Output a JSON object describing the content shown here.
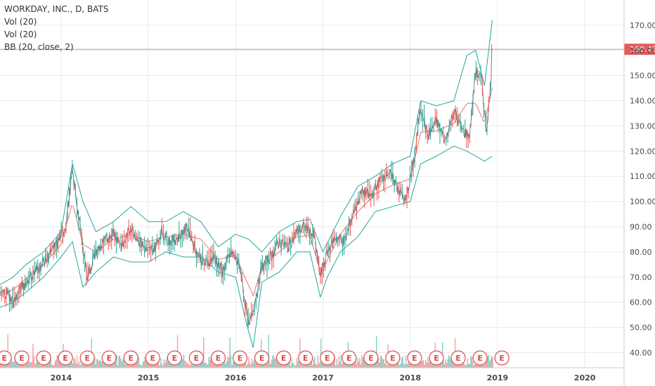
{
  "legend": {
    "title": "WORKDAY, INC., D, BATS",
    "vol1": "Vol (20)",
    "vol2": "Vol (20)",
    "bb": "BB (20, close, 2)"
  },
  "chart_data": {
    "type": "line",
    "title": "WORKDAY, INC., D, BATS",
    "xlabel": "",
    "ylabel": "",
    "x_range": [
      2013.3,
      2020.45
    ],
    "ylim": [
      34,
      180
    ],
    "y_ticks": [
      "40.00",
      "50.00",
      "60.00",
      "70.00",
      "80.00",
      "90.00",
      "100.00",
      "110.00",
      "120.00",
      "130.00",
      "140.00",
      "150.00",
      "160.00",
      "170.00"
    ],
    "x_ticks": [
      {
        "label": "2014",
        "x": 2014.0
      },
      {
        "label": "2015",
        "x": 2015.0
      },
      {
        "label": "2016",
        "x": 2016.0
      },
      {
        "label": "2017",
        "x": 2017.0
      },
      {
        "label": "2018",
        "x": 2018.0
      },
      {
        "label": "2019",
        "x": 2019.0
      },
      {
        "label": "2020",
        "x": 2020.0
      }
    ],
    "last_price": {
      "label": "160.43",
      "value": 160.43
    },
    "price_series": {
      "x": [
        2013.3,
        2013.38,
        2013.45,
        2013.55,
        2013.65,
        2013.75,
        2013.85,
        2013.95,
        2014.05,
        2014.13,
        2014.2,
        2014.3,
        2014.4,
        2014.5,
        2014.6,
        2014.7,
        2014.8,
        2014.9,
        2015.0,
        2015.08,
        2015.15,
        2015.25,
        2015.35,
        2015.45,
        2015.55,
        2015.65,
        2015.75,
        2015.85,
        2015.95,
        2016.05,
        2016.1,
        2016.15,
        2016.22,
        2016.3,
        2016.4,
        2016.5,
        2016.6,
        2016.7,
        2016.8,
        2016.9,
        2016.97,
        2017.05,
        2017.15,
        2017.25,
        2017.35,
        2017.45,
        2017.55,
        2017.65,
        2017.75,
        2017.85,
        2017.95,
        2018.05,
        2018.12,
        2018.2,
        2018.3,
        2018.4,
        2018.5,
        2018.6,
        2018.68,
        2018.75,
        2018.82,
        2018.87,
        2018.92,
        2018.94
      ],
      "y": [
        63,
        64,
        60,
        66,
        70,
        74,
        78,
        83,
        90,
        112,
        94,
        70,
        80,
        84,
        88,
        82,
        90,
        84,
        80,
        82,
        88,
        84,
        86,
        90,
        80,
        75,
        78,
        72,
        80,
        74,
        62,
        50,
        60,
        74,
        78,
        84,
        82,
        88,
        90,
        86,
        70,
        80,
        86,
        84,
        96,
        104,
        102,
        108,
        112,
        106,
        100,
        118,
        138,
        126,
        132,
        124,
        136,
        128,
        126,
        152,
        148,
        128,
        144,
        166
      ]
    },
    "band_upper": {
      "x": [
        2013.3,
        2013.45,
        2013.6,
        2013.8,
        2014.0,
        2014.13,
        2014.25,
        2014.4,
        2014.6,
        2014.8,
        2015.0,
        2015.2,
        2015.4,
        2015.6,
        2015.8,
        2016.0,
        2016.15,
        2016.3,
        2016.5,
        2016.7,
        2016.85,
        2017.0,
        2017.2,
        2017.4,
        2017.6,
        2017.8,
        2018.0,
        2018.12,
        2018.3,
        2018.5,
        2018.65,
        2018.75,
        2018.85,
        2018.94
      ],
      "y": [
        67,
        70,
        75,
        80,
        88,
        115,
        100,
        88,
        92,
        98,
        92,
        92,
        96,
        92,
        82,
        87,
        85,
        80,
        88,
        92,
        93,
        80,
        94,
        106,
        110,
        115,
        118,
        140,
        138,
        140,
        158,
        160,
        146,
        172
      ]
    },
    "band_lower": {
      "x": [
        2013.3,
        2013.45,
        2013.6,
        2013.8,
        2014.0,
        2014.13,
        2014.25,
        2014.4,
        2014.6,
        2014.8,
        2015.0,
        2015.2,
        2015.4,
        2015.6,
        2015.8,
        2016.0,
        2016.12,
        2016.2,
        2016.3,
        2016.5,
        2016.7,
        2016.85,
        2016.97,
        2017.05,
        2017.2,
        2017.4,
        2017.6,
        2017.8,
        2018.0,
        2018.12,
        2018.3,
        2018.5,
        2018.65,
        2018.75,
        2018.85,
        2018.94
      ],
      "y": [
        58,
        60,
        64,
        70,
        78,
        84,
        66,
        72,
        78,
        76,
        76,
        80,
        78,
        78,
        72,
        70,
        52,
        42,
        68,
        72,
        80,
        80,
        62,
        70,
        80,
        86,
        96,
        98,
        100,
        115,
        118,
        122,
        120,
        118,
        116,
        118
      ]
    },
    "earnings_marker_label": "E",
    "earnings_x": [
      2013.35,
      2013.55,
      2013.8,
      2014.05,
      2014.3,
      2014.55,
      2014.8,
      2015.05,
      2015.3,
      2015.55,
      2015.8,
      2016.05,
      2016.3,
      2016.55,
      2016.8,
      2017.05,
      2017.3,
      2017.55,
      2017.8,
      2018.05,
      2018.3,
      2018.55,
      2018.8,
      2019.05
    ]
  },
  "colors": {
    "candle_up": "#26a69a",
    "candle_down": "#ef5350",
    "price_line": "#7f7f7f",
    "band": "#26a69a",
    "basis": "#e05050",
    "grid": "#eaeaea",
    "last_price": "#e85a5a",
    "earnings": "#e04848"
  }
}
